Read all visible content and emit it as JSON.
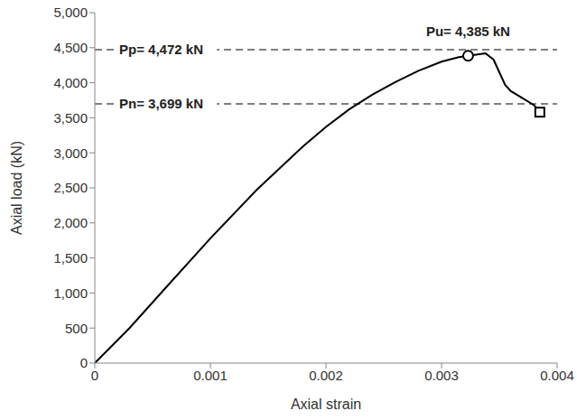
{
  "chart_data": {
    "type": "line",
    "x_label": "Axial strain",
    "y_label": "Axial load (kN)",
    "xlim": [
      0,
      0.004
    ],
    "xticks": [
      0,
      0.001,
      0.002,
      0.003,
      0.004
    ],
    "ylim": [
      0,
      5000
    ],
    "yticks": [
      0,
      500,
      {
        "value": 1000,
        "label": "1,000"
      },
      {
        "value": 1500,
        "label": "1,500"
      },
      {
        "value": 2000,
        "label": "2,000"
      },
      {
        "value": 2500,
        "label": "2,500"
      },
      {
        "value": 3000,
        "label": "3,000"
      },
      {
        "value": 3500,
        "label": "3,500"
      },
      {
        "value": 4000,
        "label": "4,000"
      },
      {
        "value": 4500,
        "label": "4,500"
      },
      {
        "value": 5000,
        "label": "5,000"
      }
    ],
    "grid": false,
    "color": "#000000",
    "x": [
      0,
      0.0003,
      0.0006,
      0.001,
      0.0014,
      0.0018,
      0.002,
      0.0022,
      0.0024,
      0.0026,
      0.0028,
      0.003,
      0.00315,
      0.00323,
      0.0033,
      0.00338,
      0.00345,
      0.0035,
      0.00355,
      0.0036,
      0.0037,
      0.0038,
      0.00385
    ],
    "values": [
      0,
      500,
      1050,
      1780,
      2470,
      3090,
      3370,
      3620,
      3830,
      4010,
      4170,
      4300,
      4365,
      4385,
      4400,
      4420,
      4330,
      4150,
      3970,
      3880,
      3780,
      3680,
      3580
    ],
    "reference_lines": [
      {
        "text": "Pp= 4,472 kN",
        "y": 4472,
        "line_style": "dashed"
      },
      {
        "text": "Pn= 3,699 kN",
        "y": 3699,
        "line_style": "dashed"
      }
    ],
    "points": [
      {
        "text": "Pu= 4,385 kN",
        "x": 0.00323,
        "y": 4385,
        "marker": "circle"
      },
      {
        "x": 0.00385,
        "y": 3580,
        "marker": "square"
      }
    ]
  }
}
